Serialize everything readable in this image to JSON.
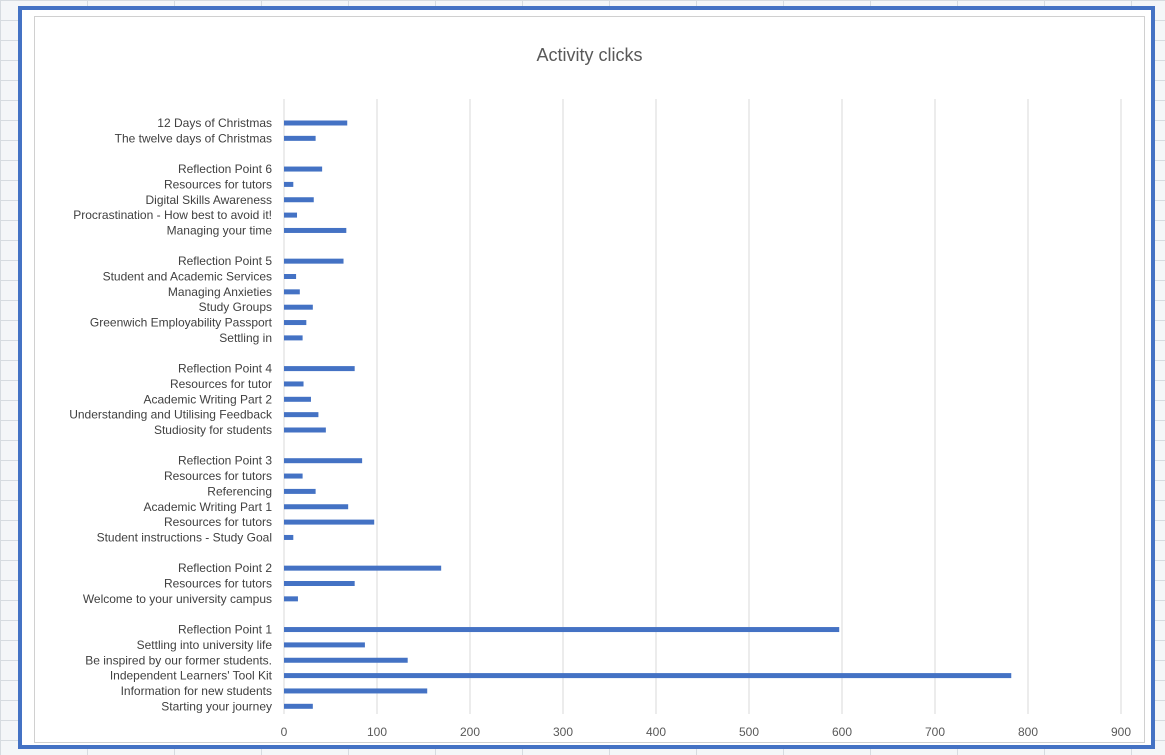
{
  "chart_data": {
    "type": "bar",
    "orientation": "horizontal",
    "title": "Activity clicks",
    "xlim": [
      0,
      900
    ],
    "x_ticks": [
      "0",
      "100",
      "200",
      "300",
      "400",
      "500",
      "600",
      "700",
      "800",
      "900"
    ],
    "grid": true,
    "bar_color": "#4472c4",
    "groups": [
      {
        "items": [
          {
            "label": "12 Days of Christmas",
            "value": 68
          },
          {
            "label": "The twelve days of Christmas",
            "value": 34
          }
        ]
      },
      {
        "items": [
          {
            "label": "Reflection Point 6",
            "value": 41
          },
          {
            "label": "Resources for tutors",
            "value": 10
          },
          {
            "label": "Digital Skills Awareness",
            "value": 32
          },
          {
            "label": "Procrastination - How best to avoid it!",
            "value": 14
          },
          {
            "label": "Managing your time",
            "value": 67
          }
        ]
      },
      {
        "items": [
          {
            "label": "Reflection Point 5",
            "value": 64
          },
          {
            "label": "Student and Academic Services",
            "value": 13
          },
          {
            "label": "Managing Anxieties",
            "value": 17
          },
          {
            "label": "Study Groups",
            "value": 31
          },
          {
            "label": "Greenwich Employability Passport",
            "value": 24
          },
          {
            "label": "Settling in",
            "value": 20
          }
        ]
      },
      {
        "items": [
          {
            "label": "Reflection Point 4",
            "value": 76
          },
          {
            "label": "Resources for tutor",
            "value": 21
          },
          {
            "label": "Academic Writing Part 2",
            "value": 29
          },
          {
            "label": "Understanding and Utilising Feedback",
            "value": 37
          },
          {
            "label": "Studiosity for students",
            "value": 45
          }
        ]
      },
      {
        "items": [
          {
            "label": "Reflection Point 3",
            "value": 84
          },
          {
            "label": "Resources for tutors",
            "value": 20
          },
          {
            "label": "Referencing",
            "value": 34
          },
          {
            "label": "Academic Writing Part 1",
            "value": 69
          },
          {
            "label": "Resources for tutors",
            "value": 97
          },
          {
            "label": "Student instructions - Study Goal",
            "value": 10
          }
        ]
      },
      {
        "items": [
          {
            "label": "Reflection Point 2",
            "value": 169
          },
          {
            "label": "Resources for tutors",
            "value": 76
          },
          {
            "label": "Welcome to your university campus",
            "value": 15
          }
        ]
      },
      {
        "items": [
          {
            "label": "Reflection Point 1",
            "value": 597
          },
          {
            "label": "Settling into university life",
            "value": 87
          },
          {
            "label": "Be inspired by our former students.",
            "value": 133
          },
          {
            "label": "Independent Learners' Tool Kit",
            "value": 782
          },
          {
            "label": "Information for new students",
            "value": 154
          },
          {
            "label": "Starting your journey",
            "value": 31
          }
        ]
      }
    ]
  }
}
